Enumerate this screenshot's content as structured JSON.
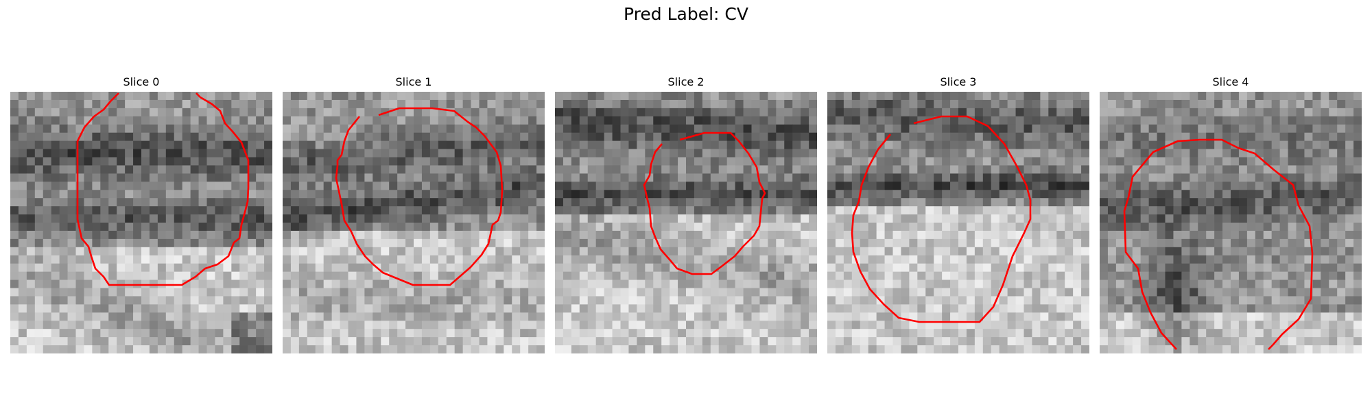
{
  "figure": {
    "title": "Pred Label: CV",
    "contour_color": "#ff0000",
    "colormap": "grayscale",
    "slices": [
      {
        "label": "Slice 0"
      },
      {
        "label": "Slice 1"
      },
      {
        "label": "Slice 2"
      },
      {
        "label": "Slice 3"
      },
      {
        "label": "Slice 4"
      }
    ]
  }
}
